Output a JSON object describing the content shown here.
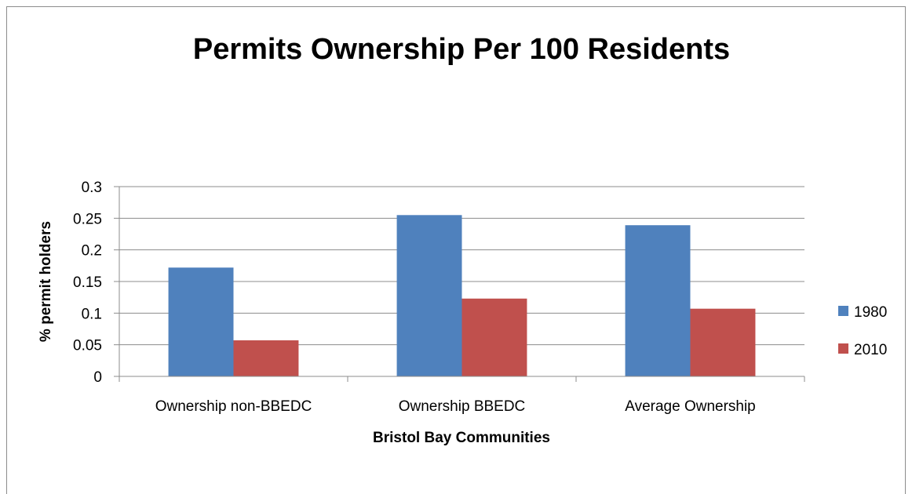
{
  "chart_data": {
    "type": "bar",
    "title": "Permits Ownership Per 100 Residents",
    "xlabel": "Bristol Bay Communities",
    "ylabel": "% permit holders",
    "categories": [
      "Ownership non-BBEDC",
      "Ownership BBEDC",
      "Average Ownership"
    ],
    "series": [
      {
        "name": "1980",
        "values": [
          0.172,
          0.255,
          0.239
        ],
        "color": "#4f81bd"
      },
      {
        "name": "2010",
        "values": [
          0.057,
          0.123,
          0.107
        ],
        "color": "#c0504d"
      }
    ],
    "ylim": [
      0,
      0.3
    ],
    "yticks": [
      "0",
      "0.05",
      "0.1",
      "0.15",
      "0.2",
      "0.25",
      "0.3"
    ],
    "grid": true,
    "legend_position": "right"
  }
}
